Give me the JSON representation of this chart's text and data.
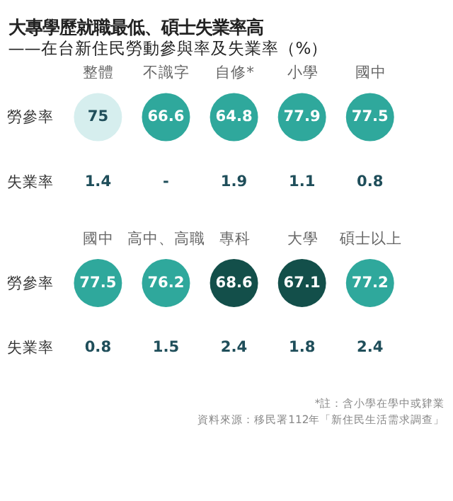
{
  "chart_data": [
    {
      "type": "heatmap",
      "title": "大專學歷就職最低、碩士失業率高",
      "subtitle": "——在台新住民勞動參與率及失業率（%）",
      "categories": [
        "整體",
        "不識字",
        "自修*",
        "小學",
        "國中"
      ],
      "y_categories": [
        "勞參率",
        "失業率"
      ],
      "cells": [
        [
          75,
          66.6,
          64.8,
          77.9,
          77.5
        ],
        [
          1.4,
          null,
          1.9,
          1.1,
          0.8
        ]
      ],
      "cell_labels": [
        [
          "75",
          "66.6",
          "64.8",
          "77.9",
          "77.5"
        ],
        [
          "1.4",
          "-",
          "1.9",
          "1.1",
          "0.8"
        ]
      ],
      "colors": [
        [
          "#d6eeee",
          "#2fa89c",
          "#2fa89c",
          "#2fa89c",
          "#2fa89c"
        ],
        [
          null,
          null,
          null,
          null,
          null
        ]
      ]
    },
    {
      "type": "heatmap",
      "categories": [
        "國中",
        "高中、高職",
        "專科",
        "大學",
        "碩士以上"
      ],
      "y_categories": [
        "勞參率",
        "失業率"
      ],
      "cells": [
        [
          77.5,
          76.2,
          68.6,
          67.1,
          77.2
        ],
        [
          0.8,
          1.5,
          2.4,
          1.8,
          2.4
        ]
      ],
      "colors": [
        [
          "#2fa89c",
          "#2fa89c",
          "#134f4a",
          "#134f4a",
          "#2fa89c"
        ],
        [
          null,
          null,
          null,
          null,
          null
        ]
      ],
      "data_labels": true,
      "annotations": [
        "*註：含小學在學中或肄業",
        "資料來源：移民署112年「新住民生活需求調查」"
      ]
    }
  ]
}
